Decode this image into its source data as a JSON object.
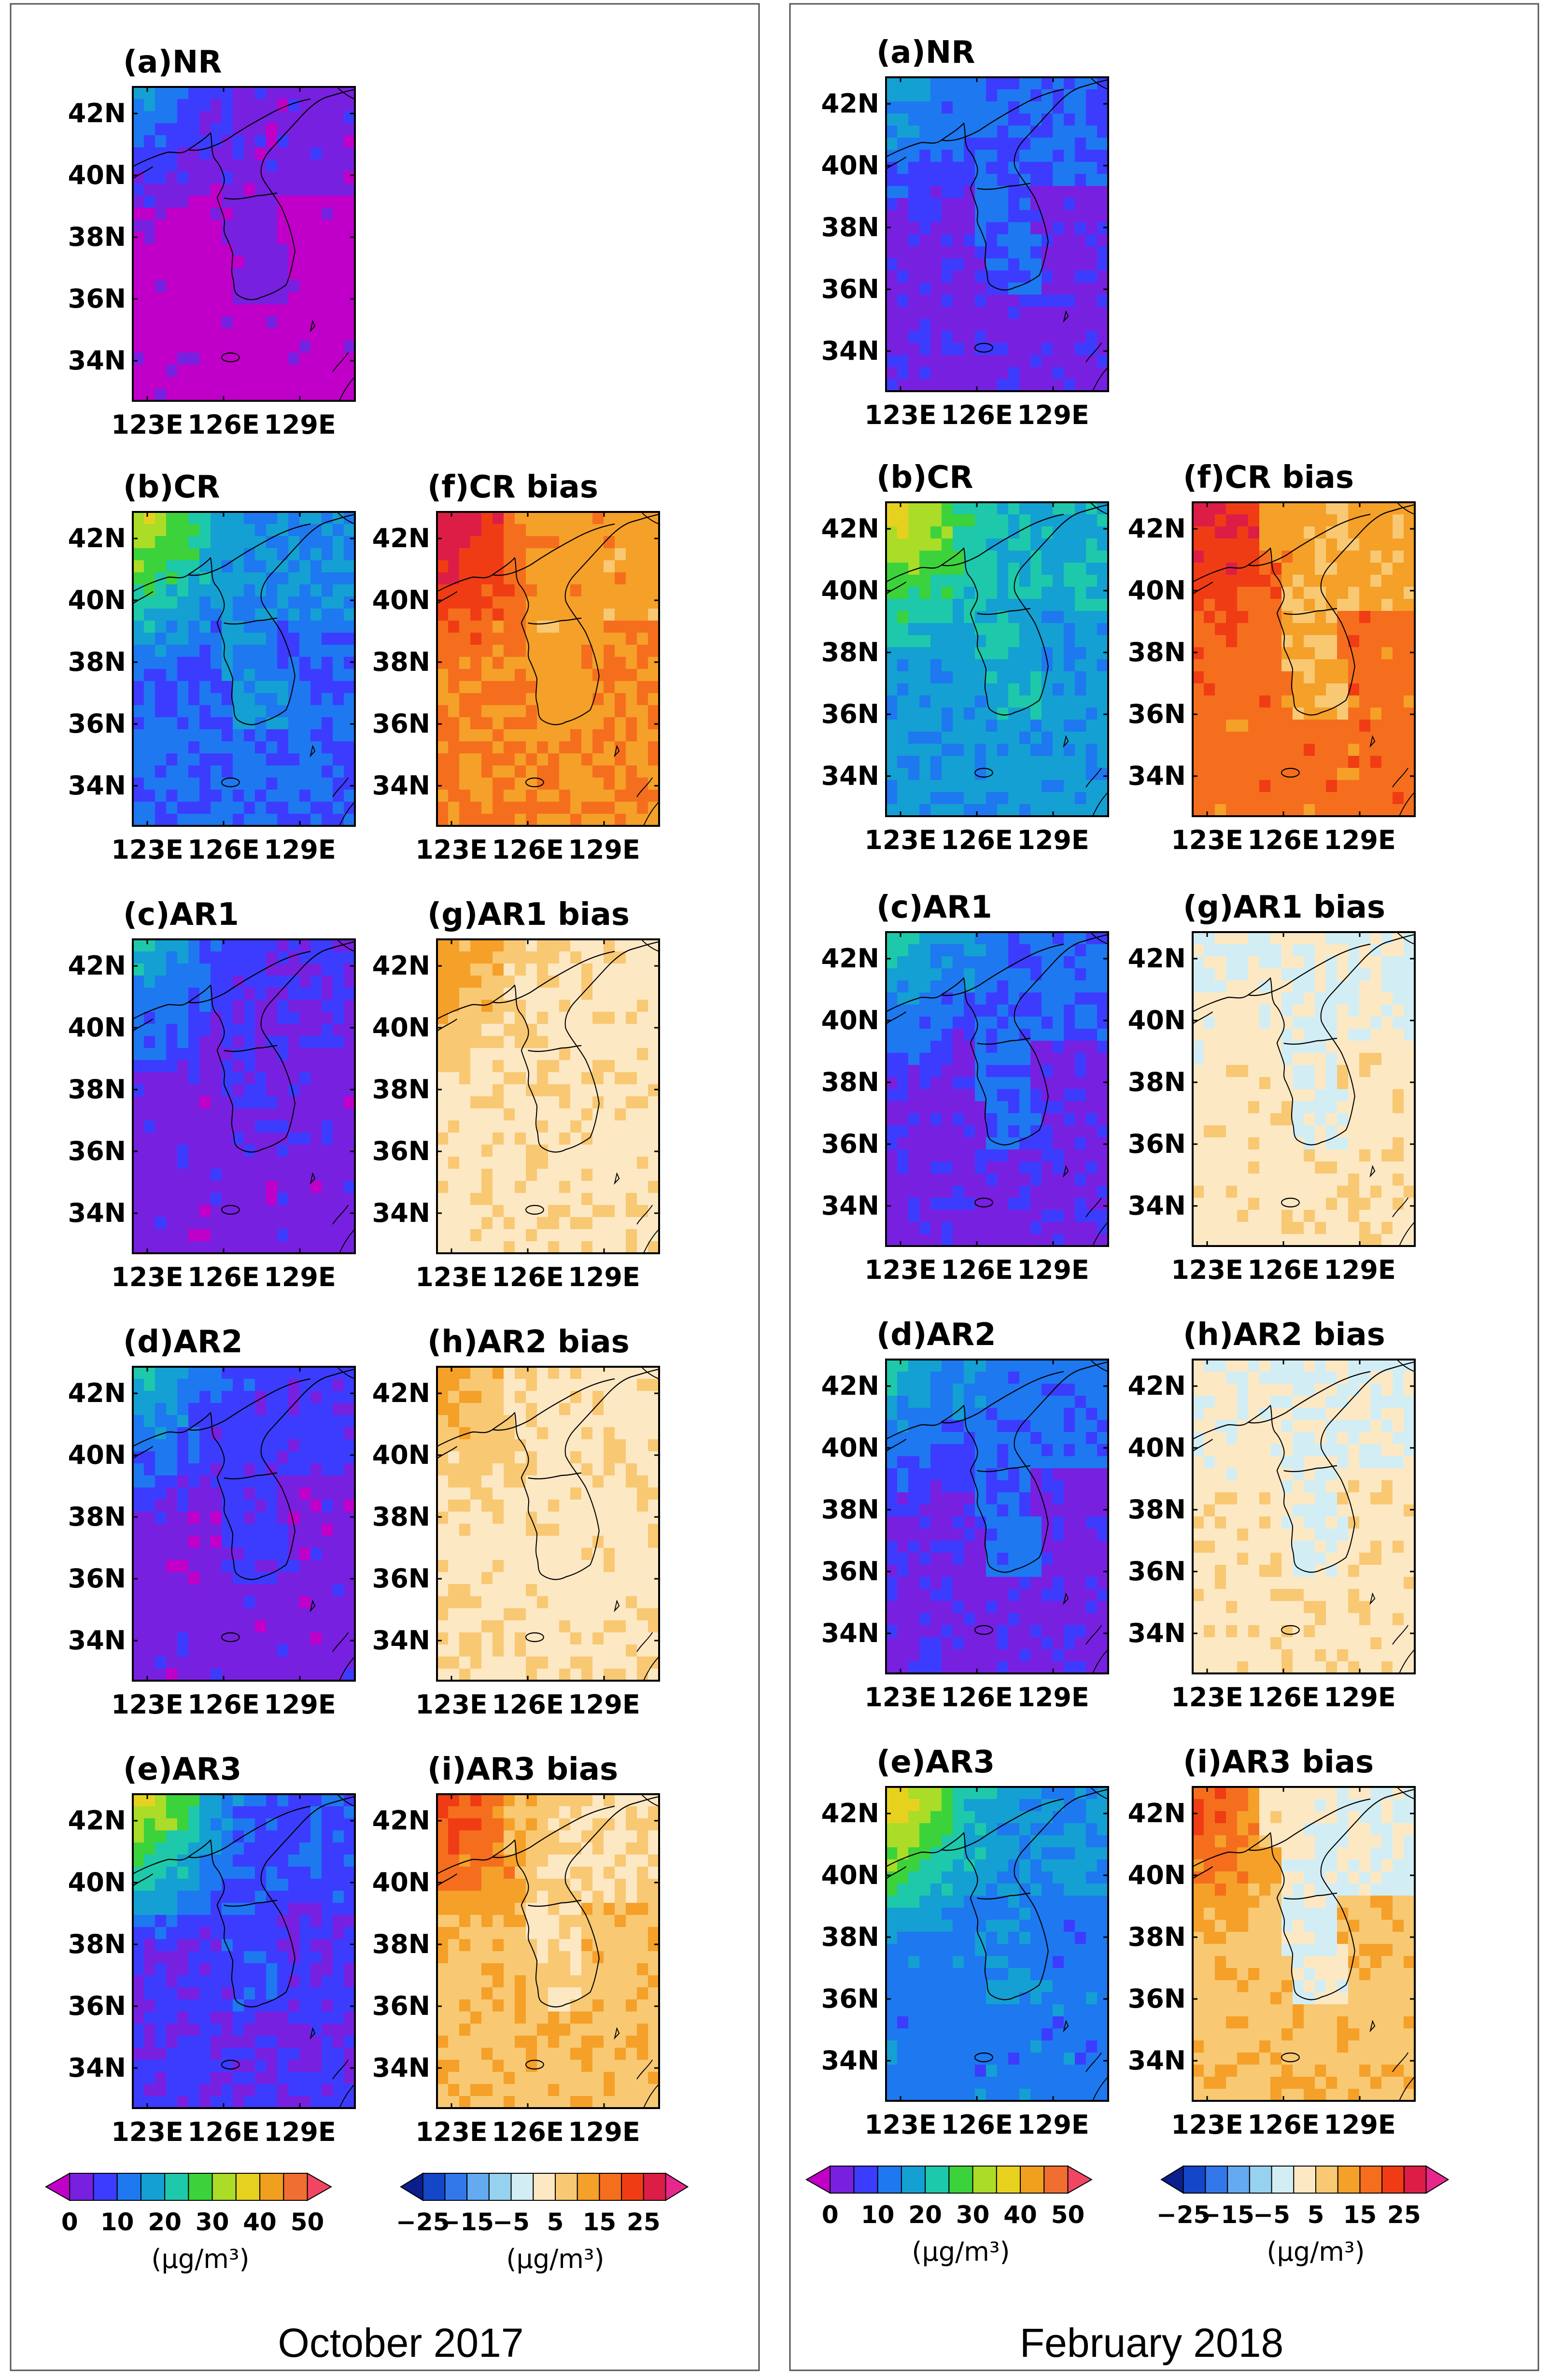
{
  "figure": {
    "columns": [
      {
        "period": "October 2017",
        "panels": {
          "a": {
            "title": "(a)NR",
            "map": "NR"
          },
          "b": {
            "title": "(b)CR",
            "map": "CR"
          },
          "c": {
            "title": "(c)AR1",
            "map": "AR1"
          },
          "d": {
            "title": "(d)AR2",
            "map": "AR2"
          },
          "e": {
            "title": "(e)AR3",
            "map": "AR3"
          },
          "f": {
            "title": "(f)CR  bias",
            "map": "CRbias"
          },
          "g": {
            "title": "(g)AR1  bias",
            "map": "AR1bias"
          },
          "h": {
            "title": "(h)AR2  bias",
            "map": "AR2bias"
          },
          "i": {
            "title": "(i)AR3  bias",
            "map": "AR3bias"
          }
        }
      },
      {
        "period": "February 2018",
        "panels": {
          "a": {
            "title": "(a)NR",
            "map": "NR2"
          },
          "b": {
            "title": "(b)CR",
            "map": "CR2"
          },
          "c": {
            "title": "(c)AR1",
            "map": "AR12"
          },
          "d": {
            "title": "(d)AR2",
            "map": "AR22"
          },
          "e": {
            "title": "(e)AR3",
            "map": "AR32"
          },
          "f": {
            "title": "(f)CR  bias",
            "map": "CRbias2"
          },
          "g": {
            "title": "(g)AR1  bias",
            "map": "AR1bias2"
          },
          "h": {
            "title": "(h)AR2  bias",
            "map": "AR2bias2"
          },
          "i": {
            "title": "(i)AR3  bias",
            "map": "AR3bias2"
          }
        }
      }
    ],
    "lat_ticks": [
      "42N",
      "40N",
      "38N",
      "36N",
      "34N"
    ],
    "lon_ticks": [
      "123E",
      "126E",
      "129E"
    ],
    "colorbars": {
      "concentration": {
        "labels": [
          "0",
          "10",
          "20",
          "30",
          "40",
          "50"
        ],
        "units": "(μg/m³)",
        "colors": [
          "#c000c8",
          "#7820e0",
          "#3c3cff",
          "#1e78f0",
          "#14a0d2",
          "#1ec8aa",
          "#3cd23c",
          "#aadc28",
          "#e6d21e",
          "#f0a01e",
          "#f06e32",
          "#f04664"
        ],
        "levels": [
          0,
          5,
          10,
          15,
          20,
          25,
          30,
          35,
          40,
          45,
          50
        ]
      },
      "bias": {
        "labels": [
          "−25",
          "−15",
          "−5",
          "5",
          "15",
          "25"
        ],
        "units": "(μg/m³)",
        "colors": [
          "#0a1e8c",
          "#1446c8",
          "#3278eb",
          "#64aaf0",
          "#96d2f0",
          "#d2eef4",
          "#fde8c4",
          "#f8c873",
          "#f5a028",
          "#f56e1e",
          "#f03c14",
          "#dc1e46",
          "#e6288c"
        ],
        "levels": [
          -25,
          -20,
          -15,
          -10,
          -5,
          0,
          5,
          10,
          15,
          20,
          25
        ]
      }
    },
    "fields": {
      "NR": {
        "base": 0.0,
        "nw": 4.0,
        "land": 1.0
      },
      "CR": {
        "base": 2.6,
        "nw": 8.0,
        "land": 3.4
      },
      "AR1": {
        "base": 1.0,
        "nw": 5.0,
        "land": 1.5
      },
      "AR2": {
        "base": 1.0,
        "nw": 5.0,
        "land": 1.8
      },
      "AR3": {
        "base": 1.6,
        "nw": 8.5,
        "land": 2.2
      },
      "CRbias": {
        "base": 8.5,
        "nw": 11.5,
        "land": 8.0
      },
      "AR1bias": {
        "base": 6.2,
        "nw": 8.3,
        "land": 6.2
      },
      "AR2bias": {
        "base": 6.2,
        "nw": 8.0,
        "land": 6.2
      },
      "AR3bias": {
        "base": 7.2,
        "nw": 10.3,
        "land": 6.5
      },
      "NR2": {
        "base": 1.2,
        "nw": 4.5,
        "land": 2.6
      },
      "CR2": {
        "base": 3.8,
        "nw": 8.5,
        "land": 4.4
      },
      "AR12": {
        "base": 1.2,
        "nw": 5.5,
        "land": 2.6
      },
      "AR22": {
        "base": 1.2,
        "nw": 5.0,
        "land": 2.8
      },
      "AR32": {
        "base": 3.0,
        "nw": 9.0,
        "land": 3.6
      },
      "CRbias2": {
        "base": 9.0,
        "nw": 11.0,
        "land": 7.6
      },
      "AR1bias2": {
        "base": 6.2,
        "nw": 5.2,
        "land": 5.4
      },
      "AR2bias2": {
        "base": 6.2,
        "nw": 5.2,
        "land": 5.4
      },
      "AR3bias2": {
        "base": 7.2,
        "nw": 10.0,
        "land": 5.4
      }
    }
  }
}
